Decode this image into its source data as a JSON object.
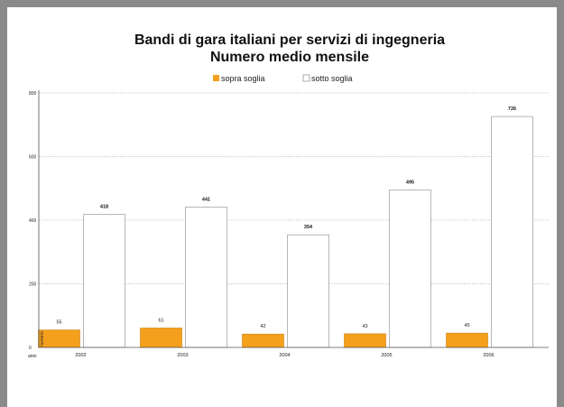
{
  "chart_data": {
    "type": "bar",
    "title": "Bandi di gara italiani per servizi di ingegneria",
    "subtitle": "Numero medio mensile",
    "xlabel": "anni",
    "ylabel": "numero",
    "categories": [
      "2002",
      "2003",
      "2004",
      "2005",
      "2006"
    ],
    "series": [
      {
        "name": "sopra soglia",
        "values": [
          55,
          61,
          42,
          43,
          45
        ],
        "color": "#f5a01c"
      },
      {
        "name": "sotto soglia",
        "values": [
          418,
          441,
          354,
          495,
          726
        ],
        "color": "#ffffff"
      }
    ],
    "ylim": [
      0,
      800
    ],
    "yticks": [
      0,
      200,
      400,
      600,
      800
    ],
    "grid": true,
    "legend_position": "top-center"
  }
}
